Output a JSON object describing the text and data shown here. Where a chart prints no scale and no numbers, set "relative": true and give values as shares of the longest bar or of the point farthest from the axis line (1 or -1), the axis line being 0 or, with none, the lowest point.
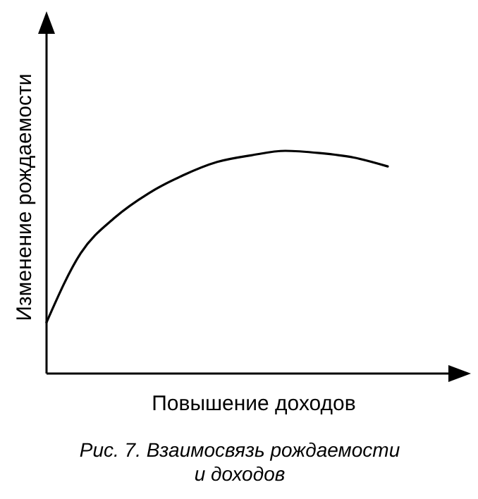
{
  "chart_data": {
    "type": "line",
    "relative": true,
    "xlabel": "Повышение доходов",
    "ylabel": "Изменение рождаемости",
    "annotations": [
      "Рис. 7. Взаимосвязь рождаемости и доходов"
    ],
    "categories": [
      null,
      null,
      null,
      null,
      null,
      null,
      null,
      null,
      null,
      null,
      null
    ],
    "series": [
      {
        "color": "#000000",
        "values": [
          0.23,
          0.54,
          0.7,
          0.81,
          0.89,
          0.95,
          0.98,
          1.0,
          0.99,
          0.97,
          0.93
        ]
      }
    ],
    "marker": "none",
    "line_style": "solid"
  }
}
